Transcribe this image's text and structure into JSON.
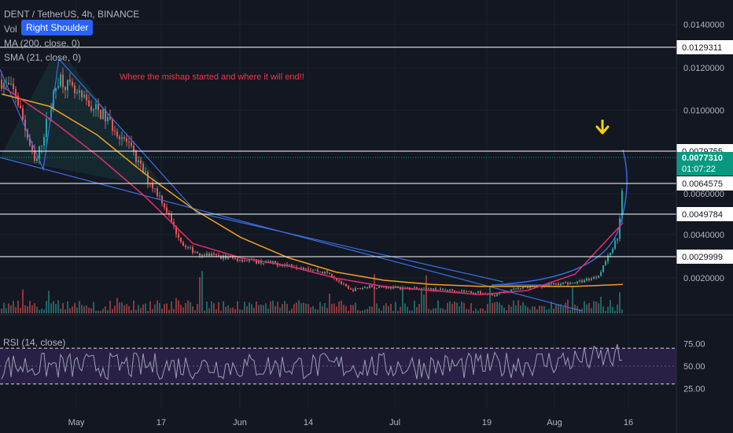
{
  "header": {
    "title": "DENT / TetherUS, 4h, BINANCE",
    "vol": "Vol",
    "ma200": "MA (200, close, 0)",
    "sma21": "SMA (21, close, 0)",
    "badge": "Right Shoulder"
  },
  "annotation": "Where the mishap started and where it will end!!",
  "colors": {
    "background": "#131722",
    "up": "#26a69a",
    "down": "#ef5350",
    "ma200": "#f0a020",
    "sma21": "#e0306a",
    "trendline": "#3b6fe0",
    "rsi": "#9aa0b0",
    "rsi_band": "#2a2046",
    "annotation": "#f23645",
    "arrow": "#f5d20b",
    "last_price": "#089981"
  },
  "chart_data": [
    {
      "type": "candlestick",
      "title": "DENT / TetherUS, 4h, BINANCE",
      "x_tick_labels": [
        "May",
        "17",
        "Jun",
        "14",
        "Jul",
        "19",
        "Aug",
        "16"
      ],
      "y_tick_labels": [
        "0.0140000",
        "0.0120000",
        "0.0100000",
        "0.0060000",
        "0.0040000",
        "0.0020000"
      ],
      "horizontal_levels": [
        "0.0129311",
        "0.0079755",
        "0.0064575",
        "0.0049784",
        "0.0029999"
      ],
      "last_price": "0.0077310",
      "countdown": "01:07:22",
      "series": [
        {
          "name": "MA (200, close, 0)",
          "values": [
            0.0118,
            0.0112,
            0.0098,
            0.0079,
            0.0062,
            0.0048,
            0.0038,
            0.0031,
            0.0027,
            0.0025,
            0.0024,
            0.0024,
            0.0024,
            0.0025
          ]
        },
        {
          "name": "SMA (21, close, 0)",
          "values": [
            0.0122,
            0.0106,
            0.0088,
            0.0068,
            0.0045,
            0.0038,
            0.0034,
            0.0028,
            0.0024,
            0.0022,
            0.002,
            0.0022,
            0.003,
            0.0055
          ]
        }
      ]
    },
    {
      "type": "line",
      "title": "RSI (14, close)",
      "y_tick_labels": [
        "75.00",
        "50.00",
        "25.00"
      ],
      "bands": [
        70,
        30
      ]
    }
  ]
}
